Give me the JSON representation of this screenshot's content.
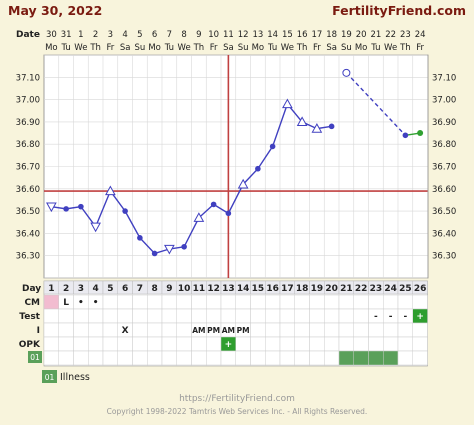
{
  "header": {
    "date": "May 30, 2022",
    "brand": "FertilityFriend.com"
  },
  "date_row_label": "Date",
  "day_row_label": "Day",
  "chart_data": {
    "type": "line",
    "title": "",
    "xlabel": "",
    "ylabel": "",
    "x": [
      1,
      2,
      3,
      4,
      5,
      6,
      7,
      8,
      9,
      10,
      11,
      12,
      13,
      14,
      15,
      16,
      17,
      18,
      19,
      20,
      21,
      22,
      23,
      24,
      25,
      26
    ],
    "dates": [
      "30",
      "31",
      "1",
      "2",
      "3",
      "4",
      "5",
      "6",
      "7",
      "8",
      "9",
      "10",
      "11",
      "12",
      "13",
      "14",
      "15",
      "16",
      "17",
      "18",
      "19",
      "20",
      "21",
      "22",
      "23",
      "24"
    ],
    "weekdays": [
      "Mo",
      "Tu",
      "We",
      "Th",
      "Fr",
      "Sa",
      "Su",
      "Mo",
      "Tu",
      "We",
      "Th",
      "Fr",
      "Sa",
      "Su",
      "Mo",
      "Tu",
      "We",
      "Th",
      "Fr",
      "Sa",
      "Su",
      "Mo",
      "Tu",
      "We",
      "Th",
      "Fr"
    ],
    "ylim": [
      36.2,
      37.2
    ],
    "yticks": [
      "37.10",
      "37.00",
      "36.90",
      "36.80",
      "36.70",
      "36.60",
      "36.50",
      "36.40",
      "36.30"
    ],
    "grid": true,
    "series": [
      {
        "color": "#4040c0",
        "points": [
          {
            "day": 1,
            "temp": 36.52,
            "marker": "triangle-open"
          },
          {
            "day": 2,
            "temp": 36.51,
            "marker": "dot"
          },
          {
            "day": 3,
            "temp": 36.52,
            "marker": "dot"
          },
          {
            "day": 4,
            "temp": 36.43,
            "marker": "triangle-open"
          },
          {
            "day": 5,
            "temp": 36.59,
            "marker": "triangle-open"
          },
          {
            "day": 6,
            "temp": 36.5,
            "marker": "dot"
          },
          {
            "day": 7,
            "temp": 36.38,
            "marker": "dot"
          },
          {
            "day": 8,
            "temp": 36.31,
            "marker": "dot"
          },
          {
            "day": 9,
            "temp": 36.33,
            "marker": "triangle-open"
          },
          {
            "day": 10,
            "temp": 36.34,
            "marker": "dot"
          },
          {
            "day": 11,
            "temp": 36.47,
            "marker": "triangle-open"
          },
          {
            "day": 12,
            "temp": 36.53,
            "marker": "dot"
          },
          {
            "day": 13,
            "temp": 36.49,
            "marker": "dot"
          },
          {
            "day": 14,
            "temp": 36.62,
            "marker": "triangle-open"
          },
          {
            "day": 15,
            "temp": 36.69,
            "marker": "dot"
          },
          {
            "day": 16,
            "temp": 36.79,
            "marker": "dot"
          },
          {
            "day": 17,
            "temp": 36.98,
            "marker": "triangle-open"
          },
          {
            "day": 18,
            "temp": 36.9,
            "marker": "triangle-open"
          },
          {
            "day": 19,
            "temp": 36.87,
            "marker": "triangle-open"
          },
          {
            "day": 20,
            "temp": 36.88,
            "marker": "dot"
          },
          {
            "day": 21,
            "temp": 37.12,
            "marker": "circle-open"
          },
          {
            "day": 25,
            "temp": 36.84,
            "marker": "dot"
          },
          {
            "day": 26,
            "temp": 36.85,
            "marker": "dot-green"
          }
        ],
        "solid_segments": [
          [
            1,
            20
          ]
        ],
        "dashed_segments": [
          [
            21,
            25
          ]
        ],
        "solid_green_segments": [
          [
            25,
            26
          ]
        ]
      }
    ],
    "coverline": 36.59,
    "ovulation_day": 13
  },
  "rows": [
    {
      "label": "CM",
      "cells": {
        "2": "L",
        "3": "•",
        "4": "•"
      }
    },
    {
      "label": "Test",
      "cells": {
        "23": "-",
        "24": "-",
        "25": "-",
        "26": "+"
      }
    },
    {
      "label": "I",
      "cells": {
        "6": "X",
        "11": "AM",
        "12": "PM",
        "13": "AM",
        "14": "PM"
      }
    },
    {
      "label": "OPK",
      "cells": {
        "13": "+"
      }
    },
    {
      "label": "01",
      "cells": {}
    }
  ],
  "illness_days": [
    21,
    22,
    23,
    24
  ],
  "legend": {
    "code": "01",
    "label": "Illness"
  },
  "footer": {
    "url": "https://FertilityFriend.com",
    "copyright": "Copyright 1998-2022 Tamtris Web Services Inc. - All Rights Reserved."
  },
  "colors": {
    "background": "#f8f4dc",
    "plot_bg": "#ffffff",
    "line": "#4040c0",
    "coverline": "#c04040",
    "header_text": "#7a1a10",
    "grid": "#d8d8d8",
    "illness": "#5aa05a",
    "plus_green": "#30a030"
  }
}
